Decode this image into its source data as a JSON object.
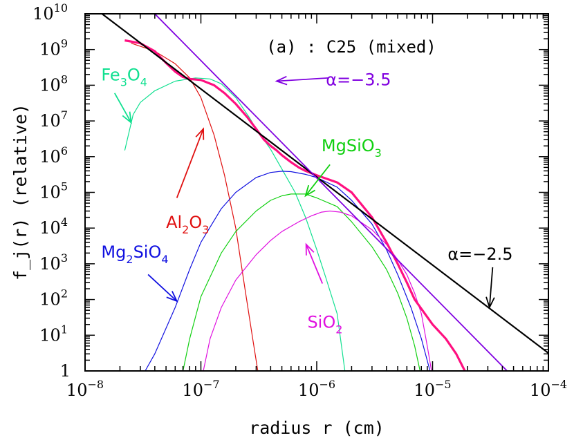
{
  "chart_data": {
    "type": "line",
    "title": "(a) : C25 (mixed)",
    "xlabel": "radius r (cm)",
    "ylabel": "f_j(r) (relative)",
    "x_scale": "log",
    "y_scale": "log",
    "xlim": [
      1e-08,
      0.0001
    ],
    "ylim": [
      1,
      10000000000.0
    ],
    "x_ticks": [
      {
        "base": "10",
        "exp": "−8",
        "value": 1e-08
      },
      {
        "base": "10",
        "exp": "−7",
        "value": 1e-07
      },
      {
        "base": "10",
        "exp": "−6",
        "value": 1e-06
      },
      {
        "base": "10",
        "exp": "−5",
        "value": 1e-05
      },
      {
        "base": "10",
        "exp": "−4",
        "value": 0.0001
      }
    ],
    "y_ticks": [
      {
        "base": "1",
        "exp": "",
        "value": 1
      },
      {
        "base": "10",
        "exp": "1",
        "value": 10.0
      },
      {
        "base": "10",
        "exp": "2",
        "value": 100.0
      },
      {
        "base": "10",
        "exp": "3",
        "value": 1000.0
      },
      {
        "base": "10",
        "exp": "4",
        "value": 10000.0
      },
      {
        "base": "10",
        "exp": "5",
        "value": 100000.0
      },
      {
        "base": "10",
        "exp": "6",
        "value": 1000000.0
      },
      {
        "base": "10",
        "exp": "7",
        "value": 10000000.0
      },
      {
        "base": "10",
        "exp": "8",
        "value": 100000000.0
      },
      {
        "base": "10",
        "exp": "9",
        "value": 1000000000.0
      },
      {
        "base": "10",
        "exp": "10",
        "value": 10000000000.0
      }
    ],
    "series": [
      {
        "name": "Al2O3",
        "color": "#e01010",
        "width": 1.2,
        "points": [
          [
            2.5e-08,
            1500000000.0
          ],
          [
            4e-08,
            900000000.0
          ],
          [
            6e-08,
            400000000.0
          ],
          [
            8e-08,
            160000000.0
          ],
          [
            1e-07,
            45000000.0
          ],
          [
            1.3e-07,
            4000000.0
          ],
          [
            1.6e-07,
            300000.0
          ],
          [
            2e-07,
            10000.0
          ],
          [
            2.4e-07,
            200
          ],
          [
            2.8e-07,
            8
          ],
          [
            3.1e-07,
            1
          ]
        ]
      },
      {
        "name": "Fe3O4",
        "color": "#10e090",
        "width": 1.2,
        "points": [
          [
            2.2e-08,
            1500000.0
          ],
          [
            2.6e-08,
            15000000.0
          ],
          [
            3e-08,
            33000000.0
          ],
          [
            4e-08,
            70000000.0
          ],
          [
            6e-08,
            130000000.0
          ],
          [
            9e-08,
            160000000.0
          ],
          [
            1.2e-07,
            150000000.0
          ],
          [
            1.5e-07,
            110000000.0
          ],
          [
            2e-07,
            45000000.0
          ],
          [
            2.6e-07,
            13000000.0
          ],
          [
            3e-07,
            6000000.0
          ],
          [
            4e-07,
            1600000.0
          ],
          [
            5e-07,
            450000.0
          ],
          [
            6.5e-07,
            100000.0
          ],
          [
            8e-07,
            20000.0
          ],
          [
            1e-06,
            2500
          ],
          [
            1.2e-06,
            400
          ],
          [
            1.5e-06,
            40
          ],
          [
            1.75e-06,
            1
          ]
        ]
      },
      {
        "name": "Mg2SiO4",
        "color": "#1010e0",
        "width": 1.2,
        "points": [
          [
            3.3e-08,
            1
          ],
          [
            4e-08,
            3
          ],
          [
            6e-08,
            60
          ],
          [
            8e-08,
            700
          ],
          [
            1e-07,
            4000
          ],
          [
            1.5e-07,
            35000.0
          ],
          [
            2e-07,
            100000.0
          ],
          [
            3e-07,
            260000.0
          ],
          [
            4e-07,
            360000.0
          ],
          [
            5e-07,
            390000.0
          ],
          [
            6e-07,
            380000.0
          ],
          [
            8e-07,
            320000.0
          ],
          [
            1e-06,
            260000.0
          ],
          [
            1.5e-06,
            140000.0
          ],
          [
            2e-06,
            60000.0
          ],
          [
            3e-06,
            13000.0
          ],
          [
            4e-06,
            2500
          ],
          [
            5e-06,
            500
          ],
          [
            6.5e-06,
            60
          ],
          [
            8e-06,
            8
          ],
          [
            9.5e-06,
            1
          ]
        ]
      },
      {
        "name": "MgSiO3",
        "color": "#10d010",
        "width": 1.2,
        "points": [
          [
            7e-08,
            1
          ],
          [
            8e-08,
            8
          ],
          [
            1e-07,
            120
          ],
          [
            1.5e-07,
            2000
          ],
          [
            2e-07,
            8000
          ],
          [
            3e-07,
            30000.0
          ],
          [
            4e-07,
            60000.0
          ],
          [
            5e-07,
            80000.0
          ],
          [
            6e-07,
            90000.0
          ],
          [
            8e-07,
            90000.0
          ],
          [
            1e-06,
            70000.0
          ],
          [
            1.5e-06,
            40000.0
          ],
          [
            2e-06,
            15000.0
          ],
          [
            3e-06,
            3000
          ],
          [
            4e-06,
            700
          ],
          [
            5e-06,
            150
          ],
          [
            6e-06,
            30
          ],
          [
            7e-06,
            5
          ],
          [
            7.8e-06,
            1
          ]
        ]
      },
      {
        "name": "SiO2",
        "color": "#e010e0",
        "width": 1.2,
        "points": [
          [
            1.05e-07,
            1
          ],
          [
            1.2e-07,
            8
          ],
          [
            1.5e-07,
            60
          ],
          [
            2e-07,
            350
          ],
          [
            3e-07,
            1800
          ],
          [
            4e-07,
            4500
          ],
          [
            5e-07,
            8000
          ],
          [
            7e-07,
            15000.0
          ],
          [
            9e-07,
            22000.0
          ],
          [
            1.1e-06,
            28000.0
          ],
          [
            1.3e-06,
            30000.0
          ],
          [
            1.6e-06,
            28000.0
          ],
          [
            2e-06,
            22000.0
          ],
          [
            3e-06,
            9000
          ],
          [
            4e-06,
            3500
          ],
          [
            5e-06,
            1300
          ],
          [
            6e-06,
            500
          ],
          [
            7e-06,
            150
          ],
          [
            8e-06,
            40
          ],
          [
            9e-06,
            5
          ],
          [
            9.8e-06,
            1
          ]
        ]
      },
      {
        "name": "total",
        "color": "#ff1080",
        "width": 3.2,
        "points": [
          [
            2.2e-08,
            1800000000.0
          ],
          [
            3e-08,
            1500000000.0
          ],
          [
            4e-08,
            900000000.0
          ],
          [
            5e-08,
            420000000.0
          ],
          [
            6e-08,
            240000000.0
          ],
          [
            7e-08,
            170000000.0
          ],
          [
            8e-08,
            150000000.0
          ],
          [
            1e-07,
            140000000.0
          ],
          [
            1.3e-07,
            100000000.0
          ],
          [
            1.6e-07,
            60000000.0
          ],
          [
            2e-07,
            30000000.0
          ],
          [
            2.5e-07,
            13000000.0
          ],
          [
            3e-07,
            6000000.0
          ],
          [
            3.5e-07,
            3000000.0
          ],
          [
            4e-07,
            2000000.0
          ],
          [
            4.5e-07,
            1500000.0
          ],
          [
            5e-07,
            1100000.0
          ],
          [
            6e-07,
            700000.0
          ],
          [
            7e-07,
            500000.0
          ],
          [
            8e-07,
            400000.0
          ],
          [
            1e-06,
            300000.0
          ],
          [
            1.5e-06,
            190000.0
          ],
          [
            2e-06,
            100000.0
          ],
          [
            3e-06,
            20000.0
          ],
          [
            4e-06,
            4000
          ],
          [
            5e-06,
            1000
          ],
          [
            6e-06,
            300
          ],
          [
            7e-06,
            100
          ],
          [
            1e-05,
            20
          ],
          [
            1.3e-05,
            8
          ],
          [
            1.6e-05,
            3
          ],
          [
            1.9e-05,
            1
          ]
        ]
      },
      {
        "name": "α=−2.5",
        "color": "#000000",
        "width": 2.2,
        "points": [
          [
            1.4e-08,
            10000000000.0
          ],
          [
            0.0001,
            3.16
          ]
        ]
      },
      {
        "name": "α=−3.5",
        "color": "#8000e0",
        "width": 1.8,
        "points": [
          [
            4e-08,
            10000000000.0
          ],
          [
            4.4e-05,
            1
          ]
        ]
      }
    ],
    "annotations": [
      {
        "kind": "species",
        "parts": [
          {
            "t": "Fe"
          },
          {
            "t": "3",
            "sub": true
          },
          {
            "t": "O"
          },
          {
            "t": "4",
            "sub": true
          }
        ],
        "color": "#10e090",
        "x": 1.38e-08,
        "y": 135000000.0
      },
      {
        "kind": "species",
        "parts": [
          {
            "t": "Al"
          },
          {
            "t": "2",
            "sub": true
          },
          {
            "t": "O"
          },
          {
            "t": "3",
            "sub": true
          }
        ],
        "color": "#e01010",
        "x": 5e-08,
        "y": 10000.0
      },
      {
        "kind": "species",
        "parts": [
          {
            "t": "MgSiO"
          },
          {
            "t": "3",
            "sub": true
          }
        ],
        "color": "#10d010",
        "x": 1.1e-06,
        "y": 1400000.0
      },
      {
        "kind": "species",
        "parts": [
          {
            "t": "Mg"
          },
          {
            "t": "2",
            "sub": true
          },
          {
            "t": "SiO"
          },
          {
            "t": "4",
            "sub": true
          }
        ],
        "color": "#1010e0",
        "x": 1.38e-08,
        "y": 1500.0
      },
      {
        "kind": "species",
        "parts": [
          {
            "t": "SiO"
          },
          {
            "t": "2",
            "sub": true
          }
        ],
        "color": "#e010e0",
        "x": 8.3e-07,
        "y": 16.0
      },
      {
        "kind": "slope",
        "parts": [
          {
            "t": "α=−3.5"
          }
        ],
        "color": "#8000e0",
        "x": 1.2e-06,
        "y": 100000000.0
      },
      {
        "kind": "slope",
        "parts": [
          {
            "t": "α=−2.5"
          }
        ],
        "color": "#000000",
        "x": 1.35e-05,
        "y": 1300.0
      }
    ],
    "arrows": [
      {
        "color": "#10e090",
        "from": [
          1.8e-08,
          60000000.0
        ],
        "to": [
          2.5e-08,
          9000000.0
        ]
      },
      {
        "color": "#e01010",
        "from": [
          6.2e-08,
          70000.0
        ],
        "to": [
          1.05e-07,
          6000000.0
        ]
      },
      {
        "color": "#10d010",
        "from": [
          1.3e-06,
          600000.0
        ],
        "to": [
          8e-07,
          80000.0
        ]
      },
      {
        "color": "#1010e0",
        "from": [
          3.5e-08,
          500
        ],
        "to": [
          6.2e-08,
          90
        ]
      },
      {
        "color": "#e010e0",
        "from": [
          1.12e-06,
          280
        ],
        "to": [
          8.1e-07,
          3500
        ]
      },
      {
        "color": "#8000e0",
        "from": [
          1.25e-06,
          160000000.0
        ],
        "to": [
          4.5e-07,
          130000000.0
        ]
      },
      {
        "color": "#000000",
        "from": [
          3.3e-05,
          800
        ],
        "to": [
          3.1e-05,
          60
        ]
      }
    ],
    "legend": "none",
    "grid": false
  }
}
